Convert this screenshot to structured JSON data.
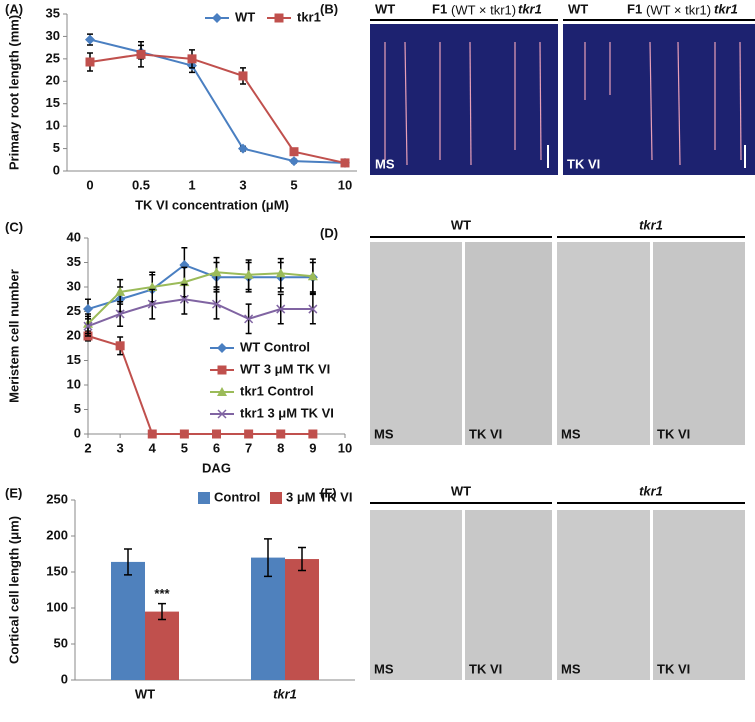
{
  "chart_data": [
    {
      "type": "line",
      "panel": "(A)",
      "y_label": "Primary root length (mm)",
      "x_label": "TK VI concentration (μM)",
      "categories": [
        "0",
        "0.5",
        "1",
        "3",
        "5",
        "10"
      ],
      "ylim": [
        0,
        35
      ],
      "yticks": [
        0,
        5,
        10,
        15,
        20,
        25,
        30,
        35
      ],
      "series": [
        {
          "name": "WT",
          "color": "#4a7fc1",
          "marker": "diamond",
          "values": [
            29.3,
            26.5,
            23.5,
            5,
            2.2,
            1.8
          ],
          "errors": [
            1.2,
            1.5,
            1.5,
            0.5,
            0.4,
            0.3
          ]
        },
        {
          "name": "tkr1",
          "color": "#c0504d",
          "marker": "square",
          "values": [
            24.3,
            26,
            25,
            21.2,
            4.3,
            1.8
          ],
          "errors": [
            2,
            2.8,
            2,
            1.8,
            0.6,
            0.3
          ]
        }
      ]
    },
    {
      "type": "line",
      "panel": "(C)",
      "y_label": "Meristem cell number",
      "x_label": "DAG",
      "x": [
        2,
        3,
        4,
        5,
        6,
        7,
        8,
        9
      ],
      "xlim": [
        2,
        10
      ],
      "xticks": [
        2,
        3,
        4,
        5,
        6,
        7,
        8,
        9,
        10
      ],
      "ylim": [
        0,
        40
      ],
      "yticks": [
        0,
        5,
        10,
        15,
        20,
        25,
        30,
        35,
        40
      ],
      "series": [
        {
          "name": "WT Control",
          "color": "#4a7fc1",
          "marker": "diamond",
          "values": [
            25.5,
            27.5,
            29.5,
            34.5,
            32,
            32,
            32,
            32
          ],
          "errors": [
            2,
            2.5,
            3,
            3.5,
            3,
            3,
            3,
            3
          ]
        },
        {
          "name": "WT 3 μM TK VI",
          "color": "#c0504d",
          "marker": "square",
          "values": [
            20,
            18,
            0,
            0,
            0,
            0,
            0,
            0
          ],
          "errors": [
            1,
            1.8,
            0,
            0,
            0,
            0,
            0,
            0
          ]
        },
        {
          "name": "tkr1 Control",
          "color": "#9bbb59",
          "marker": "triangle",
          "values": [
            22.5,
            29,
            30,
            31,
            33,
            32.5,
            32.8,
            32.2
          ],
          "errors": [
            2,
            2.5,
            3,
            3,
            3,
            3,
            3,
            3.5
          ]
        },
        {
          "name": "tkr1 3 μM TK VI",
          "color": "#8064a2",
          "marker": "cross",
          "values": [
            22,
            24.5,
            26.5,
            27.5,
            26.5,
            23.5,
            25.5,
            25.5
          ],
          "errors": [
            2,
            2.5,
            3,
            3,
            3,
            3,
            3,
            3
          ]
        }
      ]
    },
    {
      "type": "bar",
      "panel": "(E)",
      "y_label": "Cortical cell length (μm)",
      "categories": [
        "WT",
        "tkr1"
      ],
      "ylim": [
        0,
        250
      ],
      "yticks": [
        0,
        50,
        100,
        150,
        200,
        250
      ],
      "series": [
        {
          "name": "Control",
          "color": "#4f81bd",
          "values": [
            164,
            170
          ],
          "errors": [
            18,
            26
          ]
        },
        {
          "name": "3 μM TK VI",
          "color": "#c0504d",
          "values": [
            95,
            168
          ],
          "errors": [
            11,
            16
          ]
        }
      ],
      "annotation": "***"
    }
  ],
  "panels": [
    {
      "label": "(B)",
      "headers": [
        "WT",
        "F1",
        "(WT × tkr1)",
        "tkr1",
        "WT",
        "F1",
        "(WT × tkr1)",
        "tkr1"
      ],
      "captions": [
        "MS",
        "TK VI"
      ]
    },
    {
      "label": "(D)",
      "headers": [
        "WT",
        "tkr1"
      ],
      "captions": [
        "MS",
        "TK VI",
        "MS",
        "TK VI"
      ]
    },
    {
      "label": "(F)",
      "headers": [
        "WT",
        "tkr1"
      ],
      "captions": [
        "MS",
        "TK VI",
        "MS",
        "TK VI"
      ]
    }
  ]
}
